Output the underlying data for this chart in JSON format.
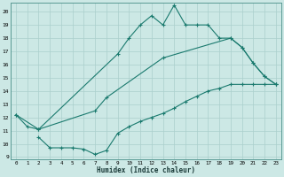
{
  "xlabel": "Humidex (Indice chaleur)",
  "background_color": "#cce8e5",
  "grid_color": "#aacfcc",
  "line_color": "#1a7a6e",
  "xlim": [
    -0.5,
    23.5
  ],
  "ylim": [
    8.8,
    20.7
  ],
  "yticks": [
    9,
    10,
    11,
    12,
    13,
    14,
    15,
    16,
    17,
    18,
    19,
    20
  ],
  "xticks": [
    0,
    1,
    2,
    3,
    4,
    5,
    6,
    7,
    8,
    9,
    10,
    11,
    12,
    13,
    14,
    15,
    16,
    17,
    18,
    19,
    20,
    21,
    22,
    23
  ],
  "line1_x": [
    0,
    1,
    2,
    9,
    10,
    11,
    12,
    13,
    14,
    15,
    16,
    17,
    18,
    19,
    20,
    21,
    22,
    23
  ],
  "line1_y": [
    12.2,
    11.3,
    11.1,
    16.8,
    18.0,
    19.0,
    19.7,
    19.0,
    20.5,
    19.0,
    19.0,
    19.0,
    18.0,
    18.0,
    17.3,
    16.1,
    15.1,
    14.5
  ],
  "line2_x": [
    0,
    2,
    7,
    8,
    13,
    19,
    20,
    21,
    22,
    23
  ],
  "line2_y": [
    12.2,
    11.1,
    12.5,
    13.5,
    16.5,
    18.0,
    17.3,
    16.1,
    15.1,
    14.5
  ],
  "line3_x": [
    2,
    3,
    4,
    5,
    6,
    7,
    8,
    9,
    10,
    11,
    12,
    13,
    14,
    15,
    16,
    17,
    18,
    19,
    20,
    21,
    22,
    23
  ],
  "line3_y": [
    10.5,
    9.7,
    9.7,
    9.7,
    9.6,
    9.2,
    9.5,
    10.8,
    11.3,
    11.7,
    12.0,
    12.3,
    12.7,
    13.2,
    13.6,
    14.0,
    14.2,
    14.5,
    14.5,
    14.5,
    14.5,
    14.5
  ]
}
